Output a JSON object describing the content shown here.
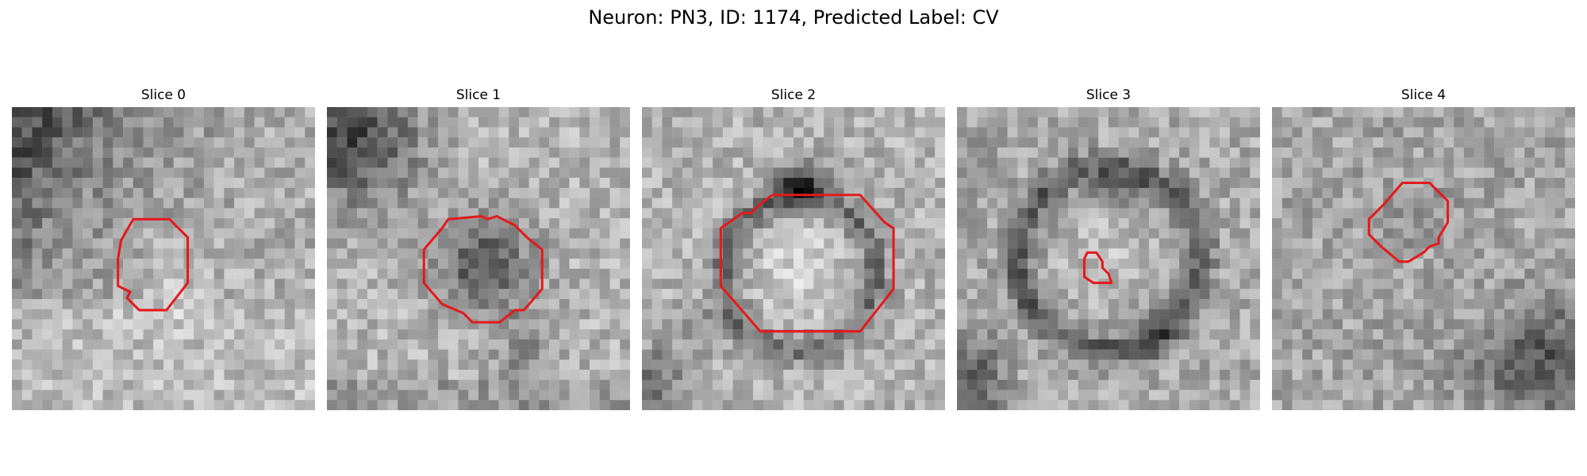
{
  "figure": {
    "title": "Neuron: PN3, ID: 1174, Predicted Label: CV"
  },
  "colors": {
    "background": "#ffffff",
    "contour": "#e41a1c"
  },
  "panels": [
    {
      "title": "Slice 0",
      "content": "grayscale microscopy patch with dark upper-left region and a red octagonal contour around a lighter round structure, lower-center"
    },
    {
      "title": "Slice 1",
      "content": "grayscale microscopy patch with dark upper-left corner and a red octagonal contour enclosing a dark round structure in the center"
    },
    {
      "title": "Slice 2",
      "content": "grayscale microscopy patch showing a ring-shaped dark membrane around a bright round body with a large red octagonal contour"
    },
    {
      "title": "Slice 3",
      "content": "grayscale microscopy patch showing a dark ring structure with a small red contour inside, left of center"
    },
    {
      "title": "Slice 4",
      "content": "grayscale microscopy patch, mostly mid-gray with darker lower-right region and a red octagonal contour upper-center"
    }
  ]
}
